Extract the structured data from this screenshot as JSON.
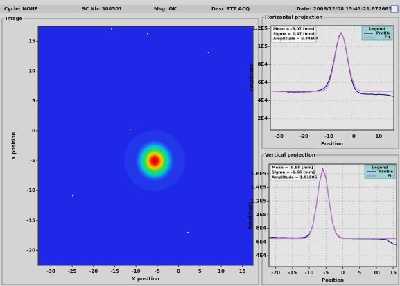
{
  "header": {
    "cycle": "Cycle: NONE",
    "sc": "SC Nb: 308501",
    "msg": "Msg: OK",
    "desc": "Desc RTT ACQ",
    "date": "Date: 2006/12/08 15:43:21.872663"
  },
  "chart_data": [
    {
      "type": "heatmap",
      "title": "Image",
      "xlabel": "X position",
      "ylabel": "Y position",
      "xlim": [
        -33,
        17.5
      ],
      "ylim": [
        -22.5,
        17.5
      ],
      "xticks": [
        -30,
        -25,
        -20,
        -15,
        -10,
        -5,
        0,
        5,
        10,
        15
      ],
      "yticks": [
        -20,
        -15,
        -10,
        -5,
        0,
        5,
        10,
        15
      ],
      "spot": {
        "x": -5.6,
        "y": -5.0
      }
    },
    {
      "type": "line",
      "title": "Horizontal projection",
      "xlabel": "Position",
      "ylabel": "Amplitude",
      "annotations": [
        "Mean = -5.07 [mm]",
        "Sigma = 2.47 [mm]",
        "Amplitude = 6.44E04"
      ],
      "legend_title": "Legend",
      "legend": "upper right",
      "grid": true,
      "xlim": [
        -33.5,
        16
      ],
      "ylim": [
        7000,
        123000
      ],
      "xticks": [
        -30,
        -20,
        -10,
        0,
        10
      ],
      "yticks": [
        {
          "value": 20000,
          "label": "2E4"
        },
        {
          "value": 40000,
          "label": "4E4"
        },
        {
          "value": 60000,
          "label": "6E4"
        },
        {
          "value": 80000,
          "label": "8E4"
        },
        {
          "value": 100000,
          "label": "1E5"
        },
        {
          "value": 120000,
          "label": "1.2E5"
        }
      ],
      "x": [
        -33,
        -32,
        -31,
        -30,
        -29,
        -28,
        -27,
        -26,
        -25,
        -24,
        -23,
        -22,
        -21,
        -20,
        -19,
        -18,
        -17,
        -16,
        -15,
        -14,
        -13,
        -12,
        -11,
        -10,
        -9,
        -8,
        -7,
        -6,
        -5,
        -4,
        -3,
        -2,
        -1,
        0,
        1,
        2,
        3,
        4,
        5,
        6,
        7,
        8,
        9,
        10,
        11,
        12,
        13,
        14,
        15,
        16
      ],
      "series": [
        {
          "name": "Profile",
          "color": "#1a1a7a",
          "values": [
            50500,
            50200,
            49800,
            50100,
            49600,
            49900,
            49500,
            49200,
            49400,
            49000,
            49300,
            49100,
            49500,
            49200,
            49600,
            49400,
            49800,
            50100,
            50400,
            51000,
            52000,
            53500,
            56500,
            62000,
            71000,
            84000,
            99000,
            111000,
            115000,
            108000,
            94000,
            78000,
            64000,
            55000,
            50500,
            48500,
            47500,
            47200,
            47000,
            46800,
            47000,
            46700,
            46500,
            46800,
            46600,
            46400,
            46200,
            45800,
            45000,
            44500
          ]
        },
        {
          "name": "Fit",
          "color": "#c87ac8",
          "values": [
            50000,
            50000,
            50000,
            50000,
            50000,
            50000,
            50000,
            50000,
            50000,
            50000,
            50000,
            50000,
            50000,
            50000,
            50000,
            50000,
            50000,
            50000,
            50000,
            50000,
            50370,
            51260,
            53600,
            58790,
            68160,
            81870,
            97460,
            109990,
            114370,
            108630,
            95330,
            79750,
            66580,
            57830,
            53150,
            51070,
            50310,
            50070,
            50000,
            50000,
            50000,
            50000,
            50000,
            50000,
            50000,
            50000,
            50000,
            50000,
            50000,
            50000
          ]
        }
      ]
    },
    {
      "type": "line",
      "title": "Vertical projection",
      "xlabel": "Position",
      "ylabel": "Amplitude",
      "annotations": [
        "Mean = -5.88 [mm]",
        "Sigma = -1.66 [mm]",
        "Amplitude = 1.01E05"
      ],
      "legend_title": "Legend",
      "legend": "upper right",
      "grid": true,
      "xlim": [
        -22,
        16
      ],
      "ylim": [
        24000,
        174000
      ],
      "xticks": [
        -20,
        -15,
        -10,
        -5,
        0,
        5,
        10,
        15
      ],
      "yticks": [
        {
          "value": 40000,
          "label": "4E4"
        },
        {
          "value": 60000,
          "label": "6E4"
        },
        {
          "value": 80000,
          "label": "8E4"
        },
        {
          "value": 100000,
          "label": "1E5"
        },
        {
          "value": 120000,
          "label": "1.2E5"
        },
        {
          "value": 140000,
          "label": "1.4E5"
        },
        {
          "value": 160000,
          "label": "1.6E5"
        }
      ],
      "x": [
        -22,
        -21,
        -20,
        -19,
        -18,
        -17,
        -16,
        -15,
        -14,
        -13,
        -12,
        -11,
        -10,
        -9,
        -8,
        -7,
        -6,
        -5,
        -4,
        -3,
        -2,
        -1,
        0,
        1,
        2,
        3,
        4,
        5,
        6,
        7,
        8,
        9,
        10,
        11,
        12,
        13,
        14,
        15,
        16
      ],
      "series": [
        {
          "name": "Profile",
          "color": "#1a1a7a",
          "values": [
            66500,
            67000,
            66800,
            66200,
            66600,
            66400,
            66100,
            66300,
            66000,
            66200,
            66500,
            67500,
            71000,
            83000,
            110000,
            146000,
            167000,
            153000,
            117000,
            87000,
            72000,
            67000,
            65500,
            65000,
            65200,
            64800,
            65000,
            64700,
            64900,
            64600,
            64800,
            64500,
            64700,
            64300,
            64000,
            63500,
            60000,
            57000,
            56000
          ]
        },
        {
          "name": "Fit",
          "color": "#c87ac8",
          "values": [
            65000,
            65000,
            65000,
            65000,
            65000,
            65000,
            65000,
            65000,
            65000,
            65000,
            65110,
            65870,
            69650,
            82270,
            109680,
            145440,
            165740,
            152760,
            118190,
            87420,
            71590,
            66340,
            65190,
            65020,
            65000,
            65000,
            65000,
            65000,
            65000,
            65000,
            65000,
            65000,
            65000,
            65000,
            65000,
            65000,
            65000,
            65000,
            65000
          ]
        }
      ]
    }
  ]
}
